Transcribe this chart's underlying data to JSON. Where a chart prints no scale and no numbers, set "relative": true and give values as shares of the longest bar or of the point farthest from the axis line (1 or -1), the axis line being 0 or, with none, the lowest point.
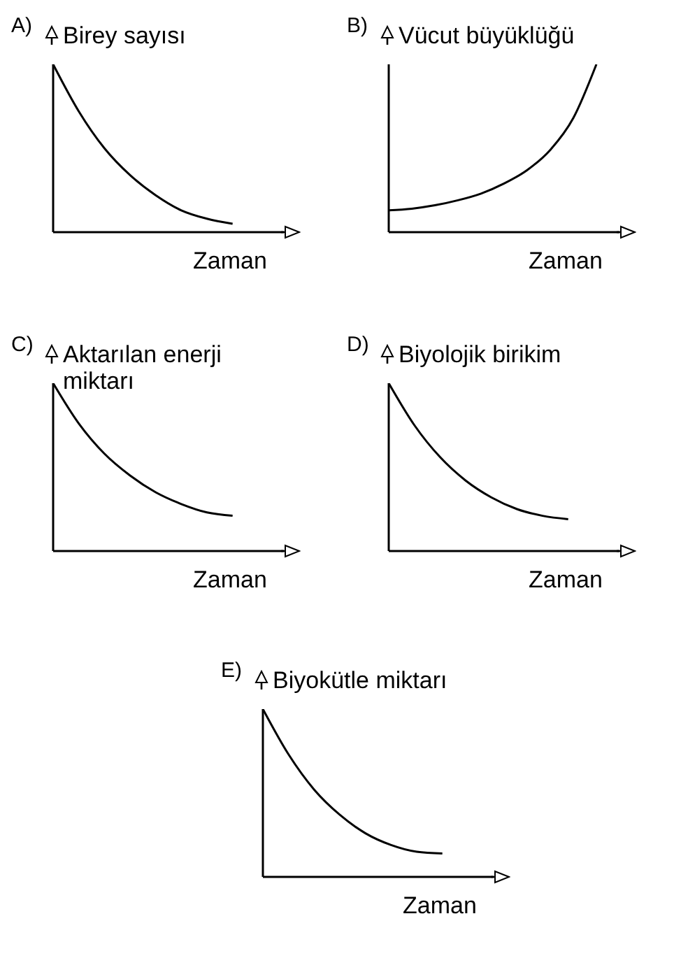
{
  "chart_data": [
    {
      "type": "line",
      "title": "A)",
      "ylabel": "Birey sayısı",
      "xlabel": "Zaman",
      "relative": true,
      "categories": [
        null,
        null,
        null,
        null,
        null,
        null,
        null,
        null,
        null,
        null
      ],
      "series": [
        {
          "color": "#000000",
          "values": [
            1,
            0.72,
            0.5,
            0.34,
            0.22,
            0.13,
            0.08,
            0.05,
            null,
            null
          ]
        }
      ]
    },
    {
      "type": "line",
      "title": "B)",
      "ylabel": "Vücut büyüklüğü",
      "xlabel": "Zaman",
      "relative": true,
      "categories": [
        null,
        null,
        null,
        null,
        null,
        null,
        null,
        null,
        null,
        null,
        null
      ],
      "series": [
        {
          "color": "#000000",
          "values": [
            0.13,
            0.14,
            0.16,
            0.19,
            0.23,
            0.29,
            0.37,
            0.49,
            0.68,
            1,
            null
          ]
        }
      ]
    },
    {
      "type": "line",
      "title": "C)",
      "ylabel": "Aktarılan enerji miktarı",
      "xlabel": "Zaman",
      "relative": true,
      "categories": [
        null,
        null,
        null,
        null,
        null,
        null,
        null,
        null,
        null,
        null
      ],
      "series": [
        {
          "color": "#000000",
          "values": [
            1,
            0.76,
            0.58,
            0.45,
            0.35,
            0.28,
            0.23,
            0.21,
            null,
            null
          ]
        }
      ]
    },
    {
      "type": "line",
      "title": "D)",
      "ylabel": "Biyolojik birikim",
      "xlabel": "Zaman",
      "relative": true,
      "categories": [
        null,
        null,
        null,
        null,
        null,
        null,
        null,
        null,
        null,
        null
      ],
      "series": [
        {
          "color": "#000000",
          "values": [
            1,
            0.75,
            0.56,
            0.42,
            0.32,
            0.25,
            0.21,
            0.19,
            null,
            null
          ]
        }
      ]
    },
    {
      "type": "line",
      "title": "E)",
      "ylabel": "Biyokütle miktarı",
      "xlabel": "Zaman",
      "relative": true,
      "categories": [
        null,
        null,
        null,
        null,
        null,
        null,
        null,
        null,
        null,
        null
      ],
      "series": [
        {
          "color": "#000000",
          "values": [
            1,
            0.73,
            0.52,
            0.37,
            0.26,
            0.19,
            0.15,
            0.14,
            null,
            null
          ]
        }
      ]
    }
  ]
}
